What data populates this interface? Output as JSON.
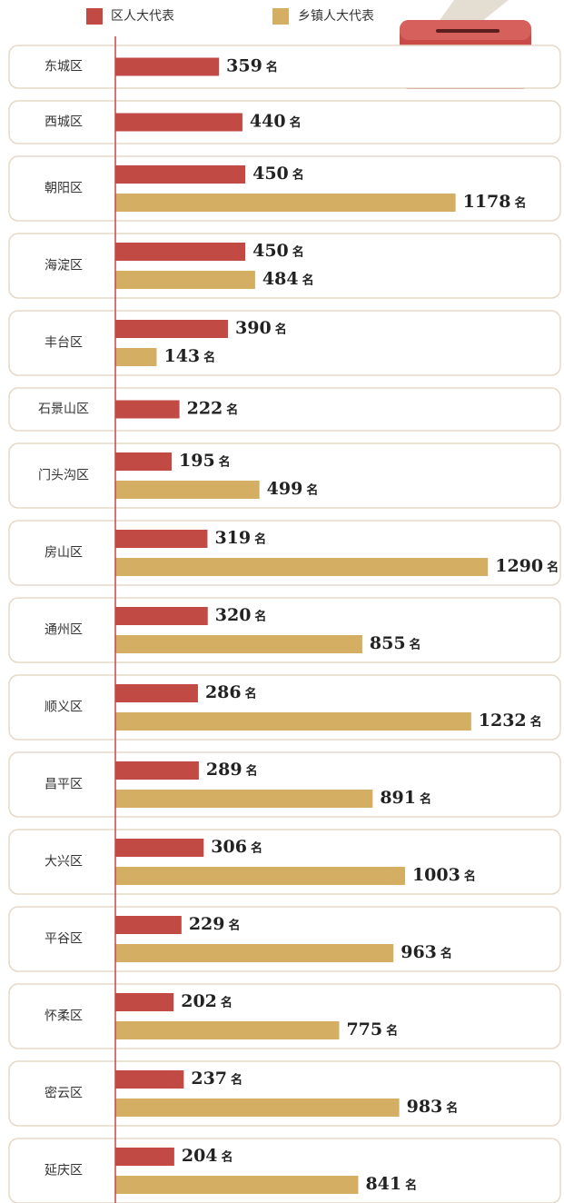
{
  "chart_data": {
    "type": "bar",
    "orientation": "horizontal",
    "categories": [
      "东城区",
      "西城区",
      "朝阳区",
      "海淀区",
      "丰台区",
      "石景山区",
      "门头沟区",
      "房山区",
      "通州区",
      "顺义区",
      "昌平区",
      "大兴区",
      "平谷区",
      "怀柔区",
      "密云区",
      "延庆区"
    ],
    "series": [
      {
        "name": "区人大代表",
        "color": "#c24a45",
        "values": [
          359,
          440,
          450,
          450,
          390,
          222,
          195,
          319,
          320,
          286,
          289,
          306,
          229,
          202,
          237,
          204
        ]
      },
      {
        "name": "乡镇人大代表",
        "color": "#d4ae62",
        "values": [
          null,
          null,
          1178,
          484,
          143,
          null,
          499,
          1290,
          855,
          1232,
          891,
          1003,
          963,
          775,
          983,
          841
        ]
      }
    ],
    "unit": "名"
  }
}
